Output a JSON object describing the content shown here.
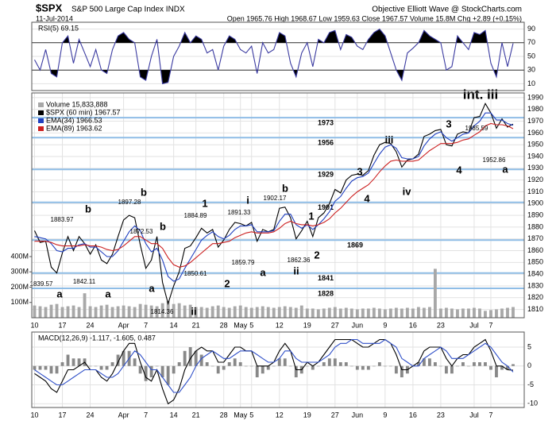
{
  "header": {
    "symbol": "$SPX",
    "name": "S&P 500 Large Cap Index INDX",
    "source": "Objective Elliott Wave @ StockCharts.com",
    "date": "11-Jul-2014",
    "quote": "Open 1965.76 High 1968.67 Low 1959.63 Close 1967.57 Volume 15.8M Chg +2.89 (+0.15%)"
  },
  "chart_data": [
    {
      "type": "line",
      "title": "RSI(5) 69.15",
      "ylim": [
        0,
        100
      ],
      "yticks": [
        10,
        30,
        50,
        70,
        90
      ],
      "bands": [
        30,
        70
      ],
      "band_fill": "#000000",
      "grid": true,
      "xlim": [
        -0.5,
        88
      ],
      "series": [
        {
          "color": "#3a3aa0",
          "values": [
            45,
            30,
            60,
            25,
            20,
            70,
            80,
            40,
            75,
            55,
            35,
            60,
            30,
            25,
            60,
            80,
            85,
            75,
            70,
            20,
            15,
            50,
            75,
            10,
            12,
            50,
            65,
            85,
            70,
            80,
            75,
            55,
            60,
            30,
            65,
            80,
            75,
            60,
            55,
            65,
            25,
            70,
            55,
            60,
            85,
            80,
            40,
            20,
            55,
            70,
            35,
            75,
            70,
            85,
            88,
            60,
            82,
            78,
            65,
            60,
            75,
            85,
            90,
            80,
            55,
            30,
            15,
            55,
            62,
            70,
            88,
            80,
            75,
            70,
            30,
            35,
            80,
            70,
            60,
            85,
            82,
            88,
            40,
            20,
            70,
            35,
            69.15
          ]
        }
      ]
    },
    {
      "type": "line",
      "xlim": [
        -0.5,
        88
      ],
      "ylim": [
        1803,
        1994
      ],
      "yticks": [
        1810,
        1820,
        1830,
        1840,
        1850,
        1860,
        1870,
        1880,
        1890,
        1900,
        1910,
        1920,
        1930,
        1940,
        1950,
        1960,
        1970,
        1980,
        1990
      ],
      "grid": true,
      "xticks": [
        {
          "value": 0,
          "label": "10"
        },
        {
          "value": 5,
          "label": "17"
        },
        {
          "value": 10,
          "label": "24"
        },
        {
          "value": 16,
          "label": "Apr"
        },
        {
          "value": 20,
          "label": "7"
        },
        {
          "value": 25,
          "label": "14"
        },
        {
          "value": 29,
          "label": "21"
        },
        {
          "value": 34,
          "label": "28"
        },
        {
          "value": 37,
          "label": "May"
        },
        {
          "value": 39,
          "label": "5"
        },
        {
          "value": 44,
          "label": "12"
        },
        {
          "value": 49,
          "label": "19"
        },
        {
          "value": 54,
          "label": "27"
        },
        {
          "value": 58,
          "label": "Jun"
        },
        {
          "value": 63,
          "label": "9"
        },
        {
          "value": 68,
          "label": "16"
        },
        {
          "value": 73,
          "label": "23"
        },
        {
          "value": 79,
          "label": "Jul"
        },
        {
          "value": 82,
          "label": "7"
        }
      ],
      "y2lim": [
        0,
        1470
      ],
      "y2ticks": [
        {
          "value": 100,
          "label": "100M"
        },
        {
          "value": 200,
          "label": "200M"
        },
        {
          "value": 300,
          "label": "300M"
        },
        {
          "value": 400,
          "label": "400M"
        }
      ],
      "levels": [
        1973,
        1956,
        1929,
        1901,
        1869,
        1841,
        1828
      ],
      "level_color": "#8fbde6",
      "series": [
        {
          "name": "Volume 15,833,888",
          "type": "bar",
          "axis": "y2",
          "color": "#a8a8a8",
          "values": [
            80,
            75,
            70,
            85,
            90,
            70,
            75,
            80,
            70,
            160,
            75,
            70,
            80,
            85,
            70,
            75,
            80,
            75,
            70,
            90,
            85,
            80,
            75,
            95,
            110,
            90,
            95,
            80,
            85,
            70,
            70,
            65,
            75,
            80,
            70,
            65,
            75,
            80,
            70,
            65,
            70,
            75,
            70,
            65,
            70,
            75,
            70,
            65,
            80,
            60,
            60,
            55,
            60,
            65,
            70,
            60,
            65,
            60,
            55,
            60,
            60,
            65,
            60,
            55,
            60,
            65,
            60,
            65,
            60,
            70,
            65,
            70,
            320,
            60,
            65,
            60,
            55,
            60,
            60,
            65,
            60,
            45,
            50,
            55,
            60,
            65,
            70
          ]
        },
        {
          "name": "$SPX (60 min) 1967.57",
          "type": "line",
          "color": "#000000",
          "values": [
            1877,
            1867,
            1868,
            1846,
            1841,
            1858,
            1872,
            1860,
            1872,
            1866,
            1857,
            1865,
            1852,
            1849,
            1857,
            1872,
            1886,
            1890,
            1888,
            1865,
            1845,
            1852,
            1872,
            1833,
            1815,
            1830,
            1842,
            1862,
            1864,
            1871,
            1879,
            1875,
            1878,
            1863,
            1869,
            1878,
            1884,
            1883,
            1881,
            1884,
            1868,
            1878,
            1876,
            1878,
            1896,
            1897,
            1888,
            1870,
            1877,
            1885,
            1872,
            1888,
            1892,
            1900,
            1912,
            1909,
            1920,
            1924,
            1925,
            1924,
            1928,
            1941,
            1950,
            1952,
            1951,
            1944,
            1931,
            1937,
            1938,
            1942,
            1957,
            1959,
            1962,
            1963,
            1950,
            1949,
            1959,
            1961,
            1960,
            1973,
            1974,
            1985,
            1977,
            1964,
            1972,
            1965,
            1967.57
          ]
        },
        {
          "name": "EMA(34) 1966.53",
          "type": "line",
          "color": "#2040c0",
          "values": [
            1872,
            1871,
            1870,
            1866,
            1860,
            1859,
            1862,
            1862,
            1865,
            1866,
            1863,
            1863,
            1859,
            1855,
            1855,
            1860,
            1868,
            1876,
            1881,
            1877,
            1866,
            1859,
            1862,
            1852,
            1838,
            1834,
            1836,
            1845,
            1853,
            1861,
            1869,
            1873,
            1876,
            1872,
            1870,
            1873,
            1878,
            1881,
            1881,
            1882,
            1876,
            1876,
            1876,
            1877,
            1885,
            1891,
            1891,
            1882,
            1879,
            1882,
            1878,
            1882,
            1887,
            1893,
            1902,
            1906,
            1913,
            1919,
            1922,
            1923,
            1926,
            1934,
            1942,
            1948,
            1950,
            1947,
            1939,
            1938,
            1938,
            1940,
            1949,
            1955,
            1959,
            1961,
            1956,
            1953,
            1956,
            1959,
            1960,
            1966,
            1970,
            1977,
            1977,
            1971,
            1971,
            1968,
            1966.53
          ]
        },
        {
          "name": "EMA(89) 1963.62",
          "type": "line",
          "color": "#cc2020",
          "values": [
            1868,
            1868,
            1868,
            1867,
            1865,
            1864,
            1864,
            1864,
            1864,
            1865,
            1864,
            1864,
            1863,
            1861,
            1860,
            1861,
            1864,
            1868,
            1872,
            1872,
            1869,
            1866,
            1866,
            1862,
            1854,
            1848,
            1846,
            1847,
            1850,
            1854,
            1858,
            1862,
            1866,
            1866,
            1867,
            1868,
            1871,
            1873,
            1875,
            1876,
            1875,
            1875,
            1875,
            1876,
            1879,
            1883,
            1885,
            1883,
            1882,
            1882,
            1881,
            1882,
            1884,
            1887,
            1892,
            1896,
            1901,
            1906,
            1910,
            1913,
            1916,
            1921,
            1927,
            1932,
            1936,
            1937,
            1936,
            1936,
            1936,
            1937,
            1941,
            1945,
            1948,
            1951,
            1951,
            1951,
            1952,
            1954,
            1955,
            1958,
            1961,
            1966,
            1968,
            1967,
            1967,
            1966,
            1963.62
          ]
        }
      ],
      "annotations": [
        {
          "text": "1839.57",
          "color": "#000000"
        },
        {
          "text": "1883.97",
          "color": "#000000"
        },
        {
          "text": "1842.11",
          "color": "#000000"
        },
        {
          "text": "1897.28",
          "color": "#000000"
        },
        {
          "text": "1872.53",
          "color": "#000000"
        },
        {
          "text": "1814.36",
          "color": "#000000"
        },
        {
          "text": "1884.89",
          "color": "#000000"
        },
        {
          "text": "1850.61",
          "color": "#000000"
        },
        {
          "text": "1891.33",
          "color": "#000000"
        },
        {
          "text": "1859.79",
          "color": "#000000"
        },
        {
          "text": "1902.17",
          "color": "#000000"
        },
        {
          "text": "1862.36",
          "color": "#000000"
        },
        {
          "text": "1985.59",
          "color": "#000000"
        },
        {
          "text": "1952.86",
          "color": "#000000"
        },
        {
          "text": "a",
          "color": "#2a8a8a"
        },
        {
          "text": "b",
          "color": "#2a8a8a"
        },
        {
          "text": "a",
          "color": "#1a2a7a"
        },
        {
          "text": "b",
          "color": "#1a2a7a"
        },
        {
          "text": "b",
          "color": "#2a8a8a"
        },
        {
          "text": "a",
          "color": "#2a8a8a"
        },
        {
          "text": "ii",
          "color": "#6a1a6a"
        },
        {
          "text": "1",
          "color": "#1a2a7a"
        },
        {
          "text": "2",
          "color": "#1a2a7a"
        },
        {
          "text": "i",
          "color": "#2a8a8a"
        },
        {
          "text": "a",
          "color": "#e07a10"
        },
        {
          "text": "b",
          "color": "#e07a10"
        },
        {
          "text": "ii",
          "color": "#2a8a8a"
        },
        {
          "text": "1",
          "color": "#e07a10"
        },
        {
          "text": "2",
          "color": "#e07a10"
        },
        {
          "text": "3",
          "color": "#e07a10"
        },
        {
          "text": "4",
          "color": "#e07a10"
        },
        {
          "text": "iii",
          "color": "#2a8a8a"
        },
        {
          "text": "iv",
          "color": "#2a8a8a"
        },
        {
          "text": "3",
          "color": "#1a2a7a"
        },
        {
          "text": "4",
          "color": "#1a2a7a"
        },
        {
          "text": "int. iii",
          "color": "#1a7a1a"
        },
        {
          "text": "a",
          "color": "#1a7a1a"
        }
      ]
    },
    {
      "type": "line",
      "title": "MACD(12,26,9) -1.117, -1.605, 0.487",
      "xlim": [
        -0.5,
        88
      ],
      "ylim": [
        -11,
        9
      ],
      "yticks": [
        -10,
        -5,
        0,
        5
      ],
      "grid": true,
      "xticks": [
        {
          "value": 0,
          "label": "10"
        },
        {
          "value": 5,
          "label": "17"
        },
        {
          "value": 10,
          "label": "24"
        },
        {
          "value": 16,
          "label": "Apr"
        },
        {
          "value": 20,
          "label": "7"
        },
        {
          "value": 25,
          "label": "14"
        },
        {
          "value": 29,
          "label": "21"
        },
        {
          "value": 34,
          "label": "28"
        },
        {
          "value": 37,
          "label": "May"
        },
        {
          "value": 39,
          "label": "5"
        },
        {
          "value": 44,
          "label": "12"
        },
        {
          "value": 49,
          "label": "19"
        },
        {
          "value": 54,
          "label": "27"
        },
        {
          "value": 58,
          "label": "Jun"
        },
        {
          "value": 63,
          "label": "9"
        },
        {
          "value": 68,
          "label": "16"
        },
        {
          "value": 73,
          "label": "23"
        },
        {
          "value": 79,
          "label": "Jul"
        },
        {
          "value": 82,
          "label": "7"
        }
      ],
      "series": [
        {
          "type": "bar",
          "color": "#888888",
          "values": [
            -1,
            -1,
            -1,
            -2,
            -2,
            1,
            3,
            2,
            2,
            2,
            0,
            0,
            -1,
            -1,
            1,
            3,
            4,
            4,
            2,
            -2,
            -4,
            -3,
            0,
            -3,
            -5,
            -2,
            1,
            4,
            5,
            4,
            3,
            1,
            0,
            -2,
            -1,
            1,
            2,
            1,
            0,
            0,
            -3,
            -2,
            -1,
            0,
            2,
            2,
            0,
            -3,
            -2,
            0,
            -1,
            0,
            1,
            2,
            2,
            1,
            1,
            0,
            -1,
            -1,
            -1,
            0,
            1,
            0,
            0,
            -2,
            -3,
            -2,
            0,
            1,
            2,
            2,
            1,
            0,
            -2,
            -2,
            0,
            1,
            0,
            1,
            1,
            1,
            -1,
            -3,
            -1,
            -1,
            0.487
          ]
        },
        {
          "type": "line",
          "color": "#000000",
          "values": [
            -2,
            -3,
            -4,
            -6,
            -7,
            -4,
            -1,
            -1,
            0,
            1,
            -1,
            -1,
            -3,
            -4,
            -2,
            1,
            4,
            6,
            6,
            1,
            -3,
            -4,
            -1,
            -6,
            -10,
            -9,
            -6,
            -1,
            2,
            4,
            5,
            4,
            4,
            1,
            1,
            3,
            5,
            5,
            4,
            4,
            0,
            0,
            0,
            1,
            4,
            6,
            4,
            -1,
            -1,
            1,
            0,
            1,
            3,
            5,
            7,
            7,
            7,
            7,
            6,
            5,
            5,
            6,
            7,
            7,
            6,
            3,
            -1,
            -1,
            0,
            1,
            4,
            5,
            5,
            5,
            2,
            0,
            2,
            3,
            3,
            5,
            6,
            7,
            4,
            0,
            0,
            -1,
            -1.117
          ]
        },
        {
          "type": "line",
          "color": "#3050c8",
          "values": [
            -1,
            -2,
            -3,
            -4,
            -5,
            -5,
            -4,
            -3,
            -2,
            -1,
            -1,
            -1,
            -2,
            -3,
            -3,
            -2,
            0,
            2,
            4,
            3,
            1,
            -1,
            -1,
            -3,
            -5,
            -7,
            -7,
            -5,
            -3,
            0,
            2,
            3,
            4,
            3,
            2,
            2,
            3,
            4,
            4,
            4,
            3,
            2,
            1,
            1,
            2,
            4,
            4,
            2,
            1,
            1,
            1,
            1,
            2,
            3,
            5,
            6,
            6,
            7,
            7,
            6,
            6,
            6,
            6,
            7,
            6,
            5,
            2,
            1,
            0,
            0,
            2,
            3,
            4,
            5,
            4,
            2,
            2,
            2,
            3,
            4,
            5,
            6,
            5,
            3,
            1,
            0,
            -1.605
          ]
        }
      ]
    }
  ]
}
